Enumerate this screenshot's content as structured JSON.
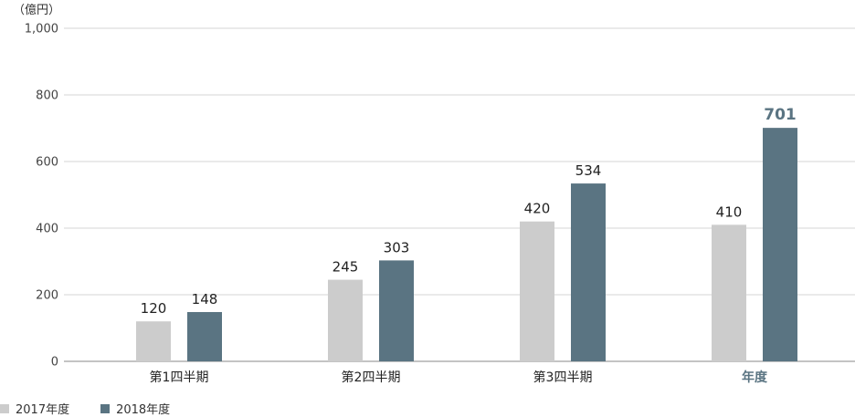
{
  "chart_data": {
    "type": "bar",
    "unit": "（億円）",
    "categories": [
      "第1四半期",
      "第2四半期",
      "第3四半期",
      "年度"
    ],
    "series": [
      {
        "name": "2017年度",
        "values": [
          120,
          245,
          420,
          410
        ],
        "color": "#cccccc"
      },
      {
        "name": "2018年度",
        "values": [
          148,
          303,
          534,
          701
        ],
        "color": "#5a7482"
      }
    ],
    "ylim": [
      0,
      1000
    ],
    "yticks": [
      0,
      200,
      400,
      600,
      800,
      1000
    ],
    "ytick_labels": [
      "0",
      "200",
      "400",
      "600",
      "800",
      "1,000"
    ],
    "highlight_category_index": 3,
    "highlight_color": "#5a7482",
    "grid": true,
    "legend_position": "bottom-left"
  }
}
